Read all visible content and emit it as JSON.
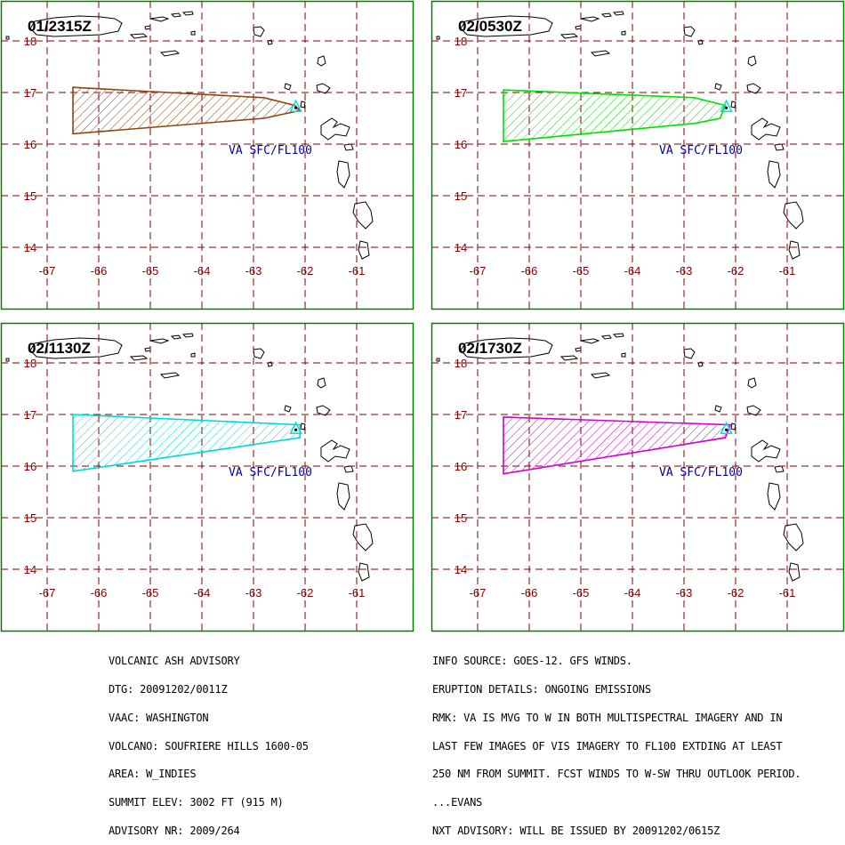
{
  "colors": {
    "frame": "#008000",
    "grid": "#800000",
    "tick_label": "#800000",
    "coast": "#000000",
    "volcano_marker": "#00e0e0",
    "annotation": "#0000a0"
  },
  "map": {
    "lon_range": [
      -67.6,
      -60.3
    ],
    "lat_range": [
      13.55,
      18.35
    ],
    "lon_ticks": [
      -67,
      -66,
      -65,
      -64,
      -63,
      -62,
      -61
    ],
    "lat_ticks": [
      14,
      15,
      16,
      17,
      18
    ],
    "volcano": {
      "lon": -62.18,
      "lat": 16.72
    }
  },
  "panels": [
    {
      "time_label": "01/2315Z",
      "annotation": "VA SFC/FL100",
      "ash_color": "#8b4513",
      "polygon": [
        [
          -66.5,
          17.1
        ],
        [
          -62.8,
          16.9
        ],
        [
          -62.2,
          16.75
        ],
        [
          -62.1,
          16.65
        ],
        [
          -62.8,
          16.5
        ],
        [
          -66.5,
          16.2
        ]
      ]
    },
    {
      "time_label": "02/0530Z",
      "annotation": "VA SFC/FL100",
      "ash_color": "#00e000",
      "polygon": [
        [
          -66.5,
          17.05
        ],
        [
          -62.8,
          16.9
        ],
        [
          -62.2,
          16.75
        ],
        [
          -62.3,
          16.5
        ],
        [
          -62.8,
          16.4
        ],
        [
          -66.5,
          16.05
        ]
      ]
    },
    {
      "time_label": "02/1130Z",
      "annotation": "VA SFC/FL100",
      "ash_color": "#00d8d8",
      "polygon": [
        [
          -66.5,
          17.0
        ],
        [
          -62.1,
          16.8
        ],
        [
          -62.1,
          16.55
        ],
        [
          -66.5,
          15.9
        ]
      ]
    },
    {
      "time_label": "02/1730Z",
      "annotation": "VA SFC/FL100",
      "ash_color": "#d000d0",
      "polygon": [
        [
          -66.5,
          16.95
        ],
        [
          -62.1,
          16.8
        ],
        [
          -62.2,
          16.55
        ],
        [
          -66.5,
          15.85
        ]
      ]
    }
  ],
  "advisory_left": [
    "VOLCANIC ASH ADVISORY",
    "DTG: 20091202/0011Z",
    "VAAC: WASHINGTON",
    "VOLCANO: SOUFRIERE HILLS 1600-05",
    "AREA: W_INDIES",
    "SUMMIT ELEV: 3002 FT (915 M)",
    "ADVISORY NR: 2009/264"
  ],
  "advisory_right": [
    "INFO SOURCE: GOES-12. GFS WINDS.",
    "ERUPTION DETAILS: ONGOING EMISSIONS",
    "RMK: VA IS MVG TO W IN BOTH MULTISPECTRAL IMAGERY AND IN",
    "LAST FEW IMAGES OF VIS IMAGERY TO FL100 EXTDING AT LEAST",
    "250 NM FROM SUMMIT. FCST WINDS TO W-SW THRU OUTLOOK PERIOD.",
    "...EVANS",
    "NXT ADVISORY: WILL BE ISSUED BY 20091202/0615Z"
  ]
}
